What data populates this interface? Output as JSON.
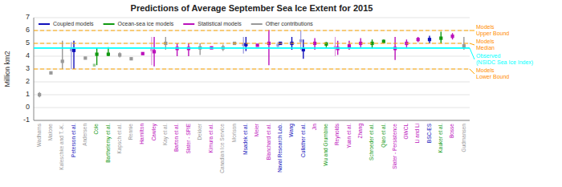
{
  "chart_data": {
    "type": "range",
    "title": "Predictions of Average September Sea Ice Extent for 2015",
    "y_label": "Million km2",
    "ylim": [
      -1,
      7
    ],
    "yticks": [
      -1,
      0,
      1,
      2,
      3,
      4,
      5,
      6,
      7
    ],
    "grid": true,
    "legend": "upper left",
    "categories": [
      "Wadhams",
      "Malone",
      "Kaleschke and T.-K.",
      "Peterson et al.",
      "Andersen",
      "Cole",
      "Barthelemy et al.",
      "Kapsch et al.",
      "Rennie",
      "Hamilton",
      "Cawley",
      "Kay et al.",
      "Barton et al.",
      "Slater - SPIE",
      "Dekker",
      "Kimura et al.",
      "Canadian Ice Service",
      "Morison",
      "Msadek et al.",
      "Meier",
      "Blanchard et al.",
      "Naval Research Lab.",
      "Wang",
      "Cullather et al.",
      "Jin",
      "Wu and Grumbine",
      "Reynolds",
      "Yuan et al.",
      "Zhang",
      "Schroeder et al.",
      "Qiao et al.",
      "Slater - Persistence",
      "GWCL",
      "Li and Li",
      "BSC-ES",
      "Kauker et al.",
      "Bosse",
      "Gudmansen"
    ],
    "series": [
      {
        "values": [
          1.0,
          2.7,
          3.6,
          4.45,
          3.85,
          4.15,
          4.15,
          4.1,
          3.8,
          4.2,
          4.35,
          5.0,
          4.6,
          4.6,
          4.65,
          4.65,
          4.65,
          5.0,
          4.9,
          4.85,
          5.0,
          5.0,
          5.0,
          4.5,
          5.0,
          4.95,
          4.6,
          4.8,
          5.0,
          5.0,
          5.15,
          4.6,
          5.0,
          5.3,
          5.3,
          5.4,
          5.55,
          4.8
        ],
        "lo": [
          0.8,
          2.7,
          3.0,
          3.0,
          3.85,
          3.3,
          4.0,
          3.9,
          3.8,
          4.2,
          3.2,
          4.5,
          4.0,
          4.0,
          4.1,
          4.65,
          4.4,
          5.0,
          4.4,
          4.85,
          3.3,
          4.9,
          4.5,
          3.8,
          4.5,
          4.7,
          4.1,
          4.5,
          4.7,
          4.6,
          5.0,
          3.7,
          4.7,
          5.1,
          5.0,
          5.0,
          5.3,
          4.5
        ],
        "hi": [
          1.2,
          2.7,
          5.2,
          5.2,
          3.85,
          4.65,
          4.7,
          4.3,
          3.8,
          4.2,
          5.5,
          5.5,
          5.0,
          5.0,
          5.0,
          4.65,
          4.9,
          5.0,
          5.5,
          4.85,
          6.05,
          5.1,
          5.5,
          5.3,
          5.4,
          5.1,
          5.2,
          5.2,
          5.4,
          5.3,
          5.3,
          5.5,
          5.3,
          5.5,
          5.6,
          5.9,
          5.8,
          5.5
        ],
        "colors": [
          "#999999",
          "#999999",
          "#999999",
          "#1111bb",
          "#999999",
          "#119911",
          "#119911",
          "#999999",
          "#999999",
          "#bb11bb",
          "#bb11bb",
          "#999999",
          "#bb11bb",
          "#bb11bb",
          "#999999",
          "#bb11bb",
          "#999999",
          "#999999",
          "#1111bb",
          "#bb11bb",
          "#bb11bb",
          "#1111bb",
          "#1111bb",
          "#1111bb",
          "#bb11bb",
          "#119911",
          "#bb11bb",
          "#bb11bb",
          "#bb11bb",
          "#119911",
          "#119911",
          "#bb11bb",
          "#bb11bb",
          "#bb11bb",
          "#1111bb",
          "#119911",
          "#bb11bb",
          "#999999"
        ]
      },
      {
        "values": [
          null,
          null,
          null,
          4.5,
          null,
          3.3,
          null,
          null,
          null,
          null,
          4.5,
          null,
          null,
          null,
          null,
          null,
          null,
          null,
          4.9,
          null,
          null,
          4.85,
          null,
          5.2,
          null,
          null,
          4.7,
          null,
          null,
          null,
          null,
          null,
          null,
          null,
          null,
          null,
          null,
          null
        ],
        "lo": [
          null,
          null,
          null,
          3.0,
          null,
          3.3,
          null,
          null,
          null,
          null,
          3.3,
          null,
          null,
          null,
          null,
          null,
          null,
          null,
          4.2,
          null,
          null,
          4.7,
          null,
          4.5,
          null,
          null,
          4.0,
          null,
          null,
          null,
          null,
          null,
          null,
          null,
          null,
          null,
          null,
          null
        ],
        "hi": [
          null,
          null,
          null,
          5.1,
          null,
          3.3,
          null,
          null,
          null,
          null,
          5.5,
          null,
          null,
          null,
          null,
          null,
          null,
          null,
          5.5,
          null,
          null,
          5.1,
          null,
          6.0,
          null,
          null,
          5.5,
          null,
          null,
          null,
          null,
          null,
          null,
          null,
          null,
          null,
          null,
          null
        ],
        "colors": [
          null,
          null,
          null,
          "#9999dd",
          null,
          "#99cc99",
          null,
          null,
          null,
          null,
          "#dd99dd",
          null,
          null,
          null,
          null,
          null,
          null,
          null,
          "#9999dd",
          null,
          null,
          "#9999dd",
          null,
          "#9999dd",
          null,
          null,
          "#dd99dd",
          null,
          null,
          null,
          null,
          null,
          null,
          null,
          null,
          null,
          null,
          null
        ]
      }
    ],
    "legend_entries": [
      {
        "label": "Coupled models",
        "color": "#1111bb"
      },
      {
        "label": "Ocean-sea ice models",
        "color": "#119911"
      },
      {
        "label": "Statistical models",
        "color": "#bb11bb"
      },
      {
        "label": "Other contributions",
        "color": "#999999"
      }
    ],
    "reference_lines": [
      {
        "value": 4.63,
        "label": "Observed\n(NSIDC Sea Ice Index)",
        "color": "cyan",
        "label_color": "cyan",
        "line_style": "solid"
      },
      {
        "value": 5.0,
        "label": "Models\nMedian",
        "color": "orange",
        "label_color": "darkorange",
        "line_style": "dashed"
      },
      {
        "value": 6.0,
        "label": "Models\nUpper Bound",
        "color": "orange",
        "label_color": "darkorange",
        "line_style": "dashed"
      },
      {
        "value": 3.0,
        "label": "Models\nLower Bound",
        "color": "orange",
        "label_color": "darkorange",
        "line_style": "dashed"
      }
    ]
  }
}
